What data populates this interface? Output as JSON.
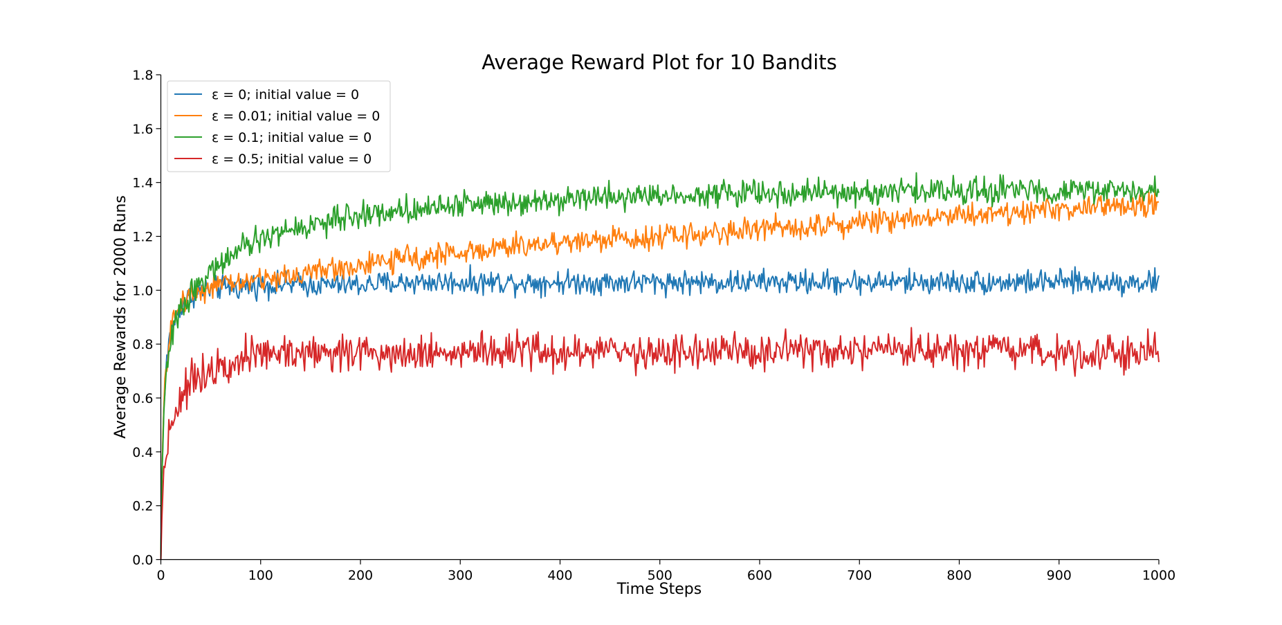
{
  "chart_data": {
    "type": "line",
    "title": "Average Reward Plot for 10 Bandits",
    "xlabel": "Time Steps",
    "ylabel": "Average Rewards for 2000 Runs",
    "xlim": [
      0,
      1000
    ],
    "ylim": [
      0.0,
      1.8
    ],
    "xticks": [
      "0",
      "100",
      "200",
      "300",
      "400",
      "500",
      "600",
      "700",
      "800",
      "900",
      "1000"
    ],
    "yticks": [
      "0.0",
      "0.2",
      "0.4",
      "0.6",
      "0.8",
      "1.0",
      "1.2",
      "1.4",
      "1.6",
      "1.8"
    ],
    "grid": false,
    "legend_position": "top-left",
    "series": [
      {
        "name": "ε = 0; initial value = 0",
        "color": "#1f77b4",
        "x": [
          0,
          1,
          2,
          3,
          5,
          8,
          10,
          15,
          20,
          25,
          30,
          40,
          50,
          60,
          80,
          100,
          125,
          150,
          175,
          200,
          250,
          300,
          350,
          400,
          450,
          500,
          550,
          600,
          650,
          700,
          750,
          800,
          850,
          900,
          950,
          1000
        ],
        "y": [
          0.0,
          0.3,
          0.45,
          0.55,
          0.7,
          0.8,
          0.85,
          0.9,
          0.94,
          0.96,
          0.98,
          1.0,
          1.0,
          1.01,
          1.01,
          1.02,
          1.02,
          1.02,
          1.02,
          1.02,
          1.03,
          1.03,
          1.03,
          1.03,
          1.03,
          1.03,
          1.03,
          1.03,
          1.03,
          1.03,
          1.03,
          1.03,
          1.03,
          1.03,
          1.03,
          1.03
        ]
      },
      {
        "name": "ε = 0.01; initial value = 0",
        "color": "#ff7f0e",
        "x": [
          0,
          1,
          2,
          3,
          5,
          8,
          10,
          15,
          20,
          25,
          30,
          40,
          50,
          60,
          80,
          100,
          125,
          150,
          175,
          200,
          250,
          300,
          350,
          400,
          450,
          500,
          550,
          600,
          650,
          700,
          750,
          800,
          850,
          900,
          950,
          1000
        ],
        "y": [
          0.0,
          0.3,
          0.45,
          0.55,
          0.7,
          0.8,
          0.86,
          0.91,
          0.95,
          0.97,
          0.99,
          1.0,
          1.01,
          1.02,
          1.03,
          1.04,
          1.05,
          1.07,
          1.08,
          1.09,
          1.12,
          1.14,
          1.16,
          1.18,
          1.19,
          1.2,
          1.21,
          1.23,
          1.24,
          1.25,
          1.27,
          1.28,
          1.29,
          1.3,
          1.31,
          1.32
        ]
      },
      {
        "name": "ε = 0.1; initial value = 0",
        "color": "#2ca02c",
        "x": [
          0,
          1,
          2,
          3,
          5,
          8,
          10,
          15,
          20,
          25,
          30,
          40,
          50,
          60,
          80,
          100,
          125,
          150,
          175,
          200,
          250,
          300,
          350,
          400,
          450,
          500,
          550,
          600,
          650,
          700,
          750,
          800,
          850,
          900,
          950,
          1000
        ],
        "y": [
          0.0,
          0.3,
          0.44,
          0.53,
          0.66,
          0.76,
          0.81,
          0.88,
          0.93,
          0.96,
          0.99,
          1.03,
          1.07,
          1.1,
          1.15,
          1.19,
          1.22,
          1.24,
          1.26,
          1.28,
          1.3,
          1.32,
          1.33,
          1.34,
          1.35,
          1.35,
          1.36,
          1.36,
          1.36,
          1.36,
          1.37,
          1.37,
          1.37,
          1.37,
          1.37,
          1.37
        ]
      },
      {
        "name": "ε = 0.5; initial value = 0",
        "color": "#d62728",
        "x": [
          0,
          1,
          2,
          3,
          5,
          8,
          10,
          15,
          20,
          25,
          30,
          40,
          50,
          60,
          80,
          100,
          125,
          150,
          175,
          200,
          250,
          300,
          350,
          400,
          450,
          500,
          550,
          600,
          650,
          700,
          750,
          800,
          850,
          900,
          950,
          1000
        ],
        "y": [
          0.0,
          0.15,
          0.25,
          0.32,
          0.4,
          0.47,
          0.5,
          0.56,
          0.6,
          0.63,
          0.66,
          0.69,
          0.71,
          0.73,
          0.75,
          0.76,
          0.77,
          0.77,
          0.77,
          0.77,
          0.77,
          0.77,
          0.77,
          0.77,
          0.77,
          0.77,
          0.77,
          0.77,
          0.77,
          0.77,
          0.77,
          0.77,
          0.77,
          0.77,
          0.77,
          0.77
        ]
      }
    ]
  }
}
